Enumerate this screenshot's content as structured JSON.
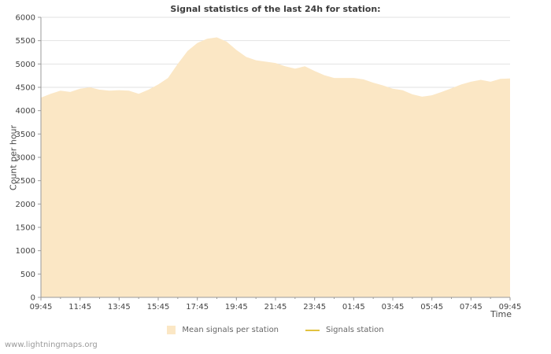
{
  "page": {
    "watermark": "www.lightningmaps.org"
  },
  "chart_data": {
    "type": "area",
    "title": "Signal statistics of the last 24h for station:",
    "xlabel": "Time",
    "ylabel": "Count per hour",
    "ylim": [
      0,
      6000
    ],
    "ytick_step": 500,
    "x_range_hours": [
      0,
      24
    ],
    "x_tick_labels": [
      "09:45",
      "11:45",
      "13:45",
      "15:45",
      "17:45",
      "19:45",
      "21:45",
      "23:45",
      "01:45",
      "03:45",
      "05:45",
      "07:45",
      "09:45"
    ],
    "grid": "horizontal",
    "legend_position": "bottom",
    "colors": {
      "grid": "#e2e2e2",
      "axis": "#9a9a9a",
      "tick_text": "#444444"
    },
    "series": [
      {
        "name": "Mean signals per station",
        "type": "area",
        "color": "#fbe7c5",
        "x_step_hours": 0.5,
        "values": [
          4280,
          4360,
          4430,
          4400,
          4470,
          4500,
          4450,
          4430,
          4440,
          4430,
          4360,
          4450,
          4560,
          4700,
          5000,
          5280,
          5450,
          5540,
          5570,
          5480,
          5300,
          5150,
          5080,
          5050,
          5020,
          4950,
          4900,
          4950,
          4850,
          4760,
          4700,
          4700,
          4700,
          4670,
          4600,
          4540,
          4470,
          4440,
          4350,
          4300,
          4330,
          4400,
          4480,
          4560,
          4620,
          4660,
          4620,
          4680,
          4690
        ]
      },
      {
        "name": "Signals station",
        "type": "line",
        "color": "#e2c240",
        "values": []
      }
    ]
  }
}
